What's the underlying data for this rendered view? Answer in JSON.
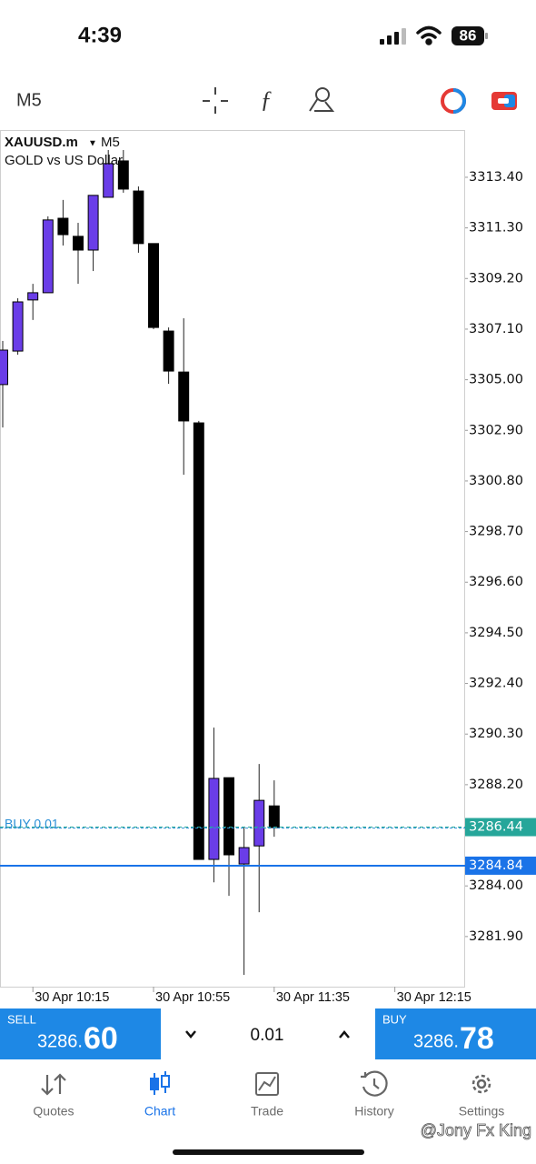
{
  "status_bar": {
    "time": "4:39",
    "battery": "86"
  },
  "toolbar": {
    "timeframe": "M5"
  },
  "chart_header": {
    "symbol": "XAUUSD.m",
    "timeframe": "M5",
    "description": "GOLD vs US Dollar"
  },
  "chart_data": {
    "type": "candlestick",
    "up_color": "#6a3de8",
    "down_color": "#000000",
    "open": [
      3304.8,
      3306.19,
      3308.31,
      3308.61,
      3311.7,
      3310.95,
      3310.38,
      3312.57,
      3314.08,
      3312.83,
      3310.65,
      3307.02,
      3305.32,
      3303.21,
      3285.1,
      3288.49,
      3284.91,
      3285.66,
      3287.32
    ],
    "high": [
      3306.61,
      3308.38,
      3308.98,
      3311.78,
      3312.46,
      3311.51,
      3312.65,
      3314.53,
      3314.53,
      3313.02,
      3310.65,
      3307.17,
      3307.55,
      3303.29,
      3290.57,
      3288.49,
      3286.42,
      3289.06,
      3288.38
    ],
    "low": [
      3303.02,
      3306.04,
      3307.48,
      3308.61,
      3310.57,
      3308.98,
      3309.51,
      3312.57,
      3312.76,
      3310.27,
      3307.1,
      3304.83,
      3301.06,
      3285.1,
      3284.15,
      3283.59,
      3280.31,
      3282.91,
      3286.04
    ],
    "close": [
      3306.23,
      3308.23,
      3308.61,
      3311.63,
      3311.02,
      3310.38,
      3312.65,
      3313.97,
      3312.91,
      3310.65,
      3307.17,
      3305.36,
      3303.29,
      3285.1,
      3288.46,
      3285.29,
      3285.59,
      3287.55,
      3286.42
    ],
    "xlim": [
      -0.18,
      30.66
    ],
    "xticks": [
      {
        "value": 2,
        "label": "30 Apr 10:15"
      },
      {
        "value": 10,
        "label": "30 Apr 10:55"
      },
      {
        "value": 18,
        "label": "30 Apr 11:35"
      },
      {
        "value": 26,
        "label": "30 Apr 12:15"
      }
    ],
    "ylim": [
      3279.82,
      3315.36
    ],
    "yticks": [
      {
        "value": 3313.4,
        "label": "3313.40"
      },
      {
        "value": 3311.3,
        "label": "3311.30"
      },
      {
        "value": 3309.2,
        "label": "3309.20"
      },
      {
        "value": 3307.1,
        "label": "3307.10"
      },
      {
        "value": 3305.0,
        "label": "3305.00"
      },
      {
        "value": 3302.9,
        "label": "3302.90"
      },
      {
        "value": 3300.8,
        "label": "3300.80"
      },
      {
        "value": 3298.7,
        "label": "3298.70"
      },
      {
        "value": 3296.6,
        "label": "3296.60"
      },
      {
        "value": 3294.5,
        "label": "3294.50"
      },
      {
        "value": 3292.4,
        "label": "3292.40"
      },
      {
        "value": 3290.3,
        "label": "3290.30"
      },
      {
        "value": 3288.2,
        "label": "3288.20"
      },
      {
        "value": 3284.0,
        "label": "3284.00"
      },
      {
        "value": 3281.9,
        "label": "3281.90"
      }
    ],
    "order_line": {
      "value": 3286.4,
      "label": "BUY 0.01",
      "color": "#2a8fd6"
    },
    "price_lines": [
      {
        "value": 3286.44,
        "color": "#26a69a",
        "dashed": true
      },
      {
        "value": 3284.84,
        "color": "#1a73e8",
        "dashed": false
      }
    ]
  },
  "trade_panel": {
    "sell": {
      "label": "SELL",
      "price_prefix": "3286.",
      "price_suffix": "60"
    },
    "volume": "0.01",
    "buy": {
      "label": "BUY",
      "price_prefix": "3286.",
      "price_suffix": "78"
    }
  },
  "tabs": [
    "Quotes",
    "Chart",
    "Trade",
    "History",
    "Settings"
  ],
  "active_tab": 1,
  "watermark": "@Jony Fx King"
}
